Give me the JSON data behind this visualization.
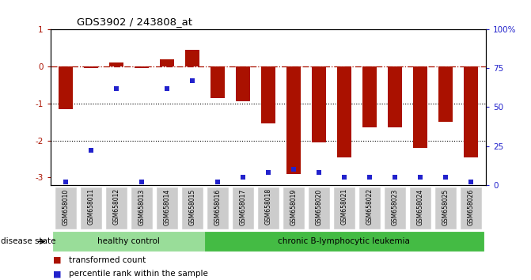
{
  "title": "GDS3902 / 243808_at",
  "samples": [
    "GSM658010",
    "GSM658011",
    "GSM658012",
    "GSM658013",
    "GSM658014",
    "GSM658015",
    "GSM658016",
    "GSM658017",
    "GSM658018",
    "GSM658019",
    "GSM658020",
    "GSM658021",
    "GSM658022",
    "GSM658023",
    "GSM658024",
    "GSM658025",
    "GSM658026"
  ],
  "transformed_count": [
    -1.15,
    -0.05,
    0.1,
    -0.05,
    0.2,
    0.45,
    -0.85,
    -0.95,
    -1.55,
    -2.9,
    -2.05,
    -2.45,
    -1.65,
    -1.65,
    -2.2,
    -1.5,
    -2.45
  ],
  "percentile_rank": [
    2,
    22,
    62,
    2,
    62,
    67,
    2,
    5,
    8,
    10,
    8,
    5,
    5,
    5,
    5,
    5,
    2
  ],
  "bar_color": "#aa1100",
  "dot_color": "#2222cc",
  "ylim_left": [
    -3.2,
    1.0
  ],
  "left_ticks": [
    -3,
    -2,
    -1,
    0,
    1
  ],
  "right_ticks": [
    0,
    25,
    50,
    75,
    100
  ],
  "right_tick_labels": [
    "0",
    "25",
    "50",
    "75",
    "100%"
  ],
  "hline_dash": 0.0,
  "hline_dot1": -1.0,
  "hline_dot2": -2.0,
  "healthy_control_count": 6,
  "group1_label": "healthy control",
  "group2_label": "chronic B-lymphocytic leukemia",
  "disease_state_label": "disease state",
  "legend1": "transformed count",
  "legend2": "percentile rank within the sample",
  "group1_color": "#99dd99",
  "group2_color": "#44bb44",
  "sample_box_color": "#cccccc",
  "sample_box_edge": "#aaaaaa",
  "bg_color": "#ffffff"
}
